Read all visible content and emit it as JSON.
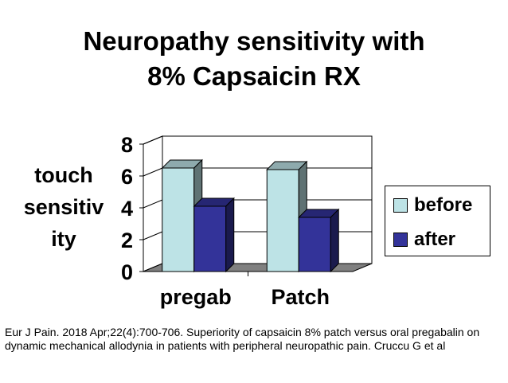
{
  "slide": {
    "title_line1": "Neuropathy sensitivity with",
    "title_line2": "8% Capsaicin RX",
    "ylabel_line1": "touch",
    "ylabel_line2": "sensitiv",
    "ylabel_line3": "ity",
    "citation": "Eur J Pain. 2018 Apr;22(4):700-706. Superiority of capsaicin 8% patch versus oral pregabalin on dynamic mechanical allodynia in patients with peripheral neuropathic pain. Cruccu G et al"
  },
  "chart_data": {
    "type": "bar",
    "style": "3d-clustered",
    "categories": [
      "pregab",
      "Patch"
    ],
    "series": [
      {
        "name": "before",
        "values": [
          6.5,
          6.4
        ],
        "color": "#BDE3E6"
      },
      {
        "name": "after",
        "values": [
          4.1,
          3.4
        ],
        "color": "#333399"
      }
    ],
    "yticks": [
      "0",
      "2",
      "4",
      "6",
      "8"
    ],
    "ylim": [
      0,
      8
    ],
    "grid": true,
    "legend_position": "right"
  }
}
